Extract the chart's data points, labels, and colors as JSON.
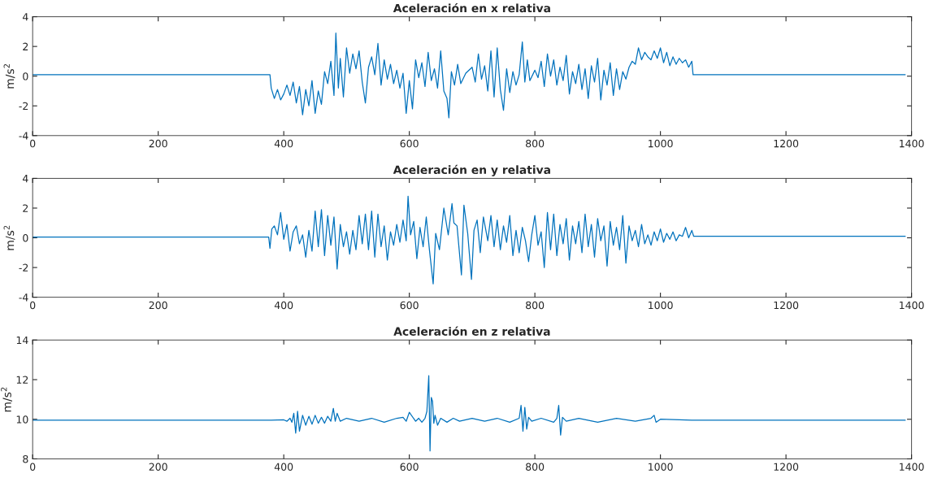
{
  "chart_data": [
    {
      "type": "line",
      "title": "Aceleración en x relativa",
      "ylabel": "m/s$^{2}$",
      "xlim": [
        0,
        1400
      ],
      "xticks": [
        0,
        200,
        400,
        600,
        800,
        1000,
        1200,
        1400
      ],
      "ylim": [
        -4,
        4
      ],
      "yticks": [
        -4,
        -2,
        0,
        2,
        4
      ],
      "grid": false,
      "series": [
        {
          "color": "#0072bd",
          "x": [
            0,
            378,
            380,
            385,
            390,
            395,
            400,
            405,
            410,
            415,
            420,
            425,
            430,
            435,
            440,
            445,
            450,
            455,
            460,
            465,
            470,
            475,
            480,
            483,
            487,
            490,
            495,
            500,
            505,
            510,
            515,
            520,
            525,
            530,
            535,
            540,
            545,
            550,
            555,
            560,
            565,
            570,
            575,
            580,
            585,
            590,
            595,
            600,
            605,
            610,
            615,
            620,
            625,
            630,
            635,
            640,
            645,
            650,
            655,
            660,
            663,
            667,
            672,
            677,
            682,
            690,
            700,
            705,
            710,
            715,
            720,
            725,
            730,
            735,
            740,
            745,
            750,
            755,
            760,
            765,
            770,
            775,
            780,
            784,
            788,
            792,
            800,
            805,
            810,
            815,
            820,
            825,
            830,
            835,
            840,
            845,
            850,
            855,
            860,
            865,
            870,
            875,
            880,
            885,
            890,
            895,
            900,
            905,
            910,
            915,
            920,
            925,
            930,
            935,
            940,
            945,
            950,
            955,
            960,
            965,
            970,
            975,
            980,
            985,
            990,
            995,
            1000,
            1005,
            1010,
            1015,
            1020,
            1025,
            1030,
            1035,
            1040,
            1045,
            1050,
            1052,
            1390
          ],
          "values": [
            0.1,
            0.1,
            -0.8,
            -1.5,
            -0.9,
            -1.6,
            -1.2,
            -0.6,
            -1.3,
            -0.4,
            -1.8,
            -0.7,
            -2.6,
            -0.9,
            -2.0,
            -0.3,
            -2.5,
            -1.0,
            -1.9,
            0.3,
            -0.5,
            1.0,
            -1.3,
            2.9,
            -0.8,
            1.2,
            -1.4,
            1.9,
            0.2,
            1.5,
            0.5,
            1.7,
            -0.4,
            -1.8,
            0.6,
            1.3,
            0.1,
            2.2,
            -0.6,
            1.1,
            -0.2,
            0.8,
            -0.5,
            0.4,
            -0.8,
            0.2,
            -2.5,
            -0.3,
            -2.2,
            1.1,
            -0.1,
            0.9,
            -0.7,
            1.6,
            -0.3,
            0.5,
            -0.8,
            1.7,
            -1.0,
            -1.5,
            -2.8,
            0.3,
            -0.6,
            0.8,
            -0.5,
            0.2,
            0.6,
            -0.4,
            1.5,
            -0.2,
            0.7,
            -1.0,
            1.7,
            -1.4,
            1.9,
            -0.9,
            -2.3,
            0.5,
            -1.1,
            0.3,
            -0.6,
            0.1,
            2.3,
            -0.4,
            1.1,
            -0.3,
            0.4,
            -0.1,
            1.0,
            -0.7,
            1.5,
            0.0,
            1.1,
            -0.6,
            0.6,
            -0.3,
            1.4,
            -1.2,
            0.3,
            -0.5,
            0.8,
            -0.9,
            0.5,
            -1.5,
            0.7,
            -0.4,
            1.2,
            -1.6,
            0.4,
            -0.6,
            0.9,
            -1.3,
            0.5,
            -0.9,
            0.3,
            -0.2,
            0.6,
            1.0,
            0.8,
            1.9,
            1.1,
            1.6,
            1.3,
            1.1,
            1.7,
            1.2,
            1.9,
            0.9,
            1.6,
            0.7,
            1.3,
            0.8,
            1.2,
            0.9,
            1.1,
            0.6,
            1.0,
            0.1,
            0.1
          ]
        }
      ]
    },
    {
      "type": "line",
      "title": "Aceleración en y relativa",
      "ylabel": "m/s$^{2}$",
      "xlim": [
        0,
        1400
      ],
      "xticks": [
        0,
        200,
        400,
        600,
        800,
        1000,
        1200,
        1400
      ],
      "ylim": [
        -4,
        4
      ],
      "yticks": [
        -4,
        -2,
        0,
        2,
        4
      ],
      "grid": false,
      "series": [
        {
          "color": "#0072bd",
          "x": [
            0,
            376,
            378,
            381,
            385,
            390,
            395,
            400,
            405,
            410,
            415,
            420,
            425,
            430,
            435,
            440,
            445,
            450,
            455,
            460,
            465,
            470,
            475,
            480,
            485,
            490,
            495,
            500,
            505,
            510,
            515,
            520,
            525,
            530,
            535,
            540,
            545,
            550,
            555,
            560,
            565,
            570,
            575,
            580,
            585,
            590,
            595,
            598,
            602,
            607,
            612,
            617,
            622,
            627,
            632,
            638,
            642,
            648,
            655,
            662,
            668,
            671,
            676,
            683,
            687,
            693,
            699,
            703,
            708,
            713,
            718,
            725,
            730,
            735,
            740,
            745,
            750,
            755,
            760,
            765,
            770,
            775,
            780,
            785,
            790,
            795,
            800,
            805,
            810,
            815,
            820,
            825,
            830,
            835,
            840,
            845,
            850,
            855,
            860,
            865,
            870,
            875,
            880,
            885,
            890,
            895,
            900,
            905,
            910,
            915,
            920,
            925,
            930,
            935,
            940,
            945,
            950,
            955,
            960,
            965,
            970,
            975,
            980,
            985,
            990,
            995,
            1000,
            1005,
            1010,
            1015,
            1020,
            1025,
            1030,
            1035,
            1040,
            1045,
            1050,
            1053,
            1390
          ],
          "values": [
            0.05,
            0.05,
            -0.7,
            0.6,
            0.8,
            0.2,
            1.7,
            -0.1,
            0.9,
            -0.9,
            0.4,
            0.8,
            -0.4,
            0.2,
            -1.3,
            0.5,
            -0.9,
            1.8,
            -0.6,
            1.9,
            -1.2,
            1.5,
            -0.5,
            1.4,
            -2.1,
            0.9,
            -0.6,
            0.4,
            -1.1,
            0.5,
            -0.8,
            1.5,
            -0.4,
            1.6,
            -0.8,
            1.8,
            -1.3,
            1.6,
            -0.6,
            0.8,
            -1.5,
            0.4,
            -0.5,
            0.9,
            -0.3,
            1.2,
            -0.2,
            2.8,
            0.2,
            1.1,
            -1.4,
            0.7,
            -0.6,
            1.4,
            -0.8,
            -3.1,
            0.3,
            -0.8,
            2.0,
            0.2,
            2.3,
            1.0,
            0.8,
            -2.5,
            2.2,
            0.3,
            -2.8,
            0.5,
            1.2,
            -1.0,
            1.4,
            -0.2,
            1.5,
            -0.6,
            1.2,
            -0.8,
            0.8,
            -0.3,
            1.5,
            -1.2,
            0.5,
            -1.0,
            0.7,
            -0.2,
            -1.6,
            0.2,
            1.5,
            -0.5,
            0.4,
            -2.0,
            1.7,
            -0.8,
            1.6,
            -1.2,
            0.9,
            -0.4,
            1.3,
            -1.5,
            0.8,
            -0.4,
            1.1,
            -1.0,
            1.6,
            -0.6,
            0.9,
            -1.3,
            1.3,
            -0.2,
            0.8,
            -1.9,
            1.1,
            -0.5,
            0.7,
            -0.8,
            1.5,
            -1.7,
            0.8,
            -0.2,
            0.5,
            -0.6,
            0.9,
            -0.4,
            0.2,
            -0.5,
            0.4,
            -0.2,
            0.6,
            -0.3,
            0.3,
            -0.1,
            0.4,
            -0.2,
            0.2,
            0.1,
            0.7,
            0.0,
            0.5,
            0.1,
            0.1
          ]
        }
      ]
    },
    {
      "type": "line",
      "title": "Aceleración en z relativa",
      "ylabel": "m/s$^{2}$",
      "xlim": [
        0,
        1400
      ],
      "xticks": [
        0,
        200,
        400,
        600,
        800,
        1000,
        1200,
        1400
      ],
      "ylim": [
        8,
        14
      ],
      "yticks": [
        8,
        10,
        12,
        14
      ],
      "grid": false,
      "series": [
        {
          "color": "#0072bd",
          "x": [
            0,
            100,
            200,
            300,
            380,
            400,
            405,
            410,
            413,
            416,
            419,
            422,
            425,
            430,
            435,
            440,
            445,
            450,
            455,
            460,
            465,
            470,
            475,
            479,
            482,
            485,
            490,
            500,
            520,
            540,
            560,
            580,
            590,
            595,
            600,
            610,
            615,
            620,
            625,
            628,
            631,
            633,
            635,
            637,
            639,
            641,
            645,
            650,
            660,
            670,
            680,
            700,
            720,
            740,
            760,
            775,
            778,
            781,
            784,
            787,
            790,
            795,
            810,
            830,
            835,
            838,
            841,
            844,
            850,
            870,
            900,
            930,
            960,
            985,
            990,
            993,
            1000,
            1050,
            1100,
            1200,
            1300,
            1390
          ],
          "values": [
            9.95,
            9.95,
            9.95,
            9.95,
            9.95,
            9.97,
            9.9,
            10.05,
            9.85,
            10.3,
            9.3,
            10.4,
            9.4,
            10.2,
            9.7,
            10.15,
            9.75,
            10.2,
            9.8,
            10.1,
            9.8,
            10.15,
            9.9,
            10.55,
            9.9,
            10.3,
            9.9,
            10.05,
            9.9,
            10.05,
            9.85,
            10.05,
            10.1,
            9.9,
            10.35,
            9.9,
            10.05,
            9.85,
            10.05,
            10.4,
            12.2,
            8.4,
            11.1,
            10.9,
            9.8,
            10.2,
            9.7,
            10.05,
            9.85,
            10.05,
            9.9,
            10.05,
            9.9,
            10.05,
            9.85,
            10.05,
            10.7,
            9.4,
            10.6,
            9.5,
            10.1,
            9.9,
            10.05,
            9.85,
            10.05,
            10.7,
            9.2,
            10.1,
            9.9,
            10.05,
            9.85,
            10.05,
            9.9,
            10.05,
            10.2,
            9.85,
            10.0,
            9.95,
            9.95,
            9.95,
            9.95,
            9.95
          ]
        }
      ]
    }
  ]
}
